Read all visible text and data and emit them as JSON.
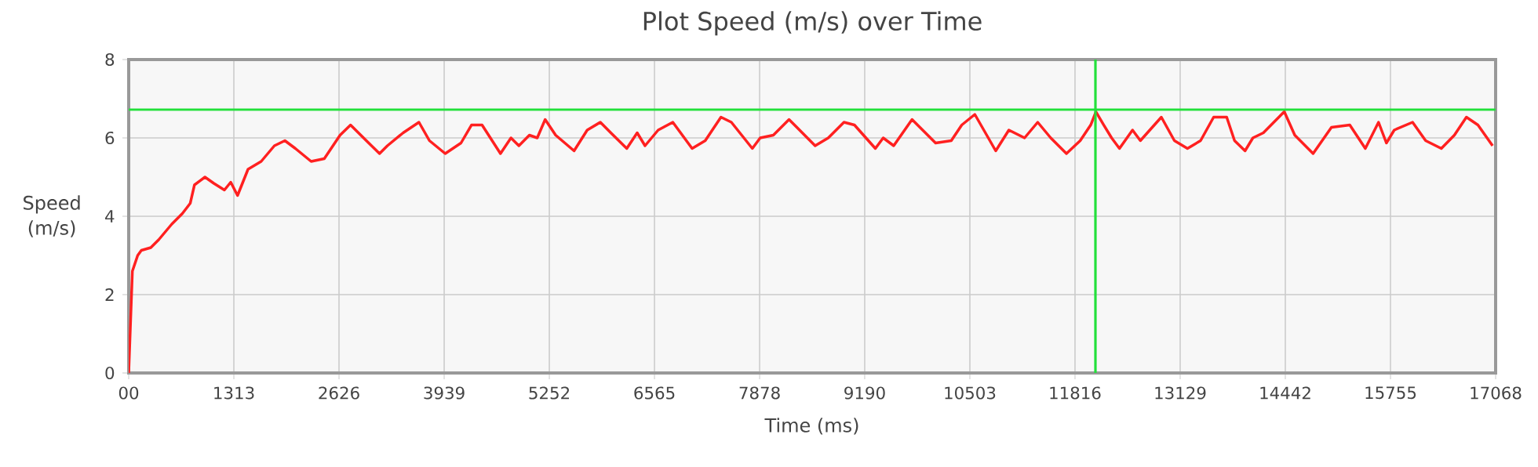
{
  "chart_data": {
    "type": "line",
    "title": "Plot Speed (m/s) over Time",
    "xlabel": "Time (ms)",
    "ylabel": "Speed (m/s)",
    "xlim": [
      0,
      17068
    ],
    "ylim": [
      0,
      8
    ],
    "xticks": [
      {
        "value": 0,
        "label": "00"
      },
      1313,
      2626,
      3939,
      5252,
      6565,
      7878,
      9190,
      10503,
      11816,
      13129,
      14442,
      15755,
      17068
    ],
    "yticks": [
      0,
      2,
      4,
      6,
      8
    ],
    "grid": true,
    "legend": false,
    "marker": "none",
    "line_style": "solid",
    "series": [
      {
        "color": "#ff2020",
        "x": [
          0,
          46,
          112,
          158,
          276,
          374,
          538,
          670,
          768,
          821,
          952,
          1063,
          1195,
          1274,
          1359,
          1490,
          1654,
          1819,
          1950,
          2081,
          2278,
          2442,
          2639,
          2770,
          2967,
          3132,
          3230,
          3427,
          3624,
          3755,
          3952,
          4149,
          4280,
          4412,
          4642,
          4773,
          4872,
          5003,
          5101,
          5200,
          5331,
          5561,
          5725,
          5889,
          6020,
          6219,
          6349,
          6447,
          6611,
          6794,
          7035,
          7199,
          7395,
          7525,
          7787,
          7885,
          8049,
          8245,
          8571,
          8735,
          8931,
          9062,
          9323,
          9421,
          9552,
          9781,
          10075,
          10271,
          10402,
          10565,
          10826,
          10990,
          11186,
          11350,
          11513,
          11709,
          11881,
          12012,
          12077,
          12175,
          12273,
          12371,
          12534,
          12632,
          12894,
          13057,
          13220,
          13384,
          13547,
          13710,
          13808,
          13939,
          14037,
          14168,
          14429,
          14560,
          14789,
          15018,
          15247,
          15441,
          15606,
          15704,
          15802,
          16031,
          16194,
          16390,
          16553,
          16703,
          16847,
          17030
        ],
        "values": [
          0,
          2.6,
          3.0,
          3.13,
          3.2,
          3.4,
          3.8,
          4.07,
          4.33,
          4.8,
          5.0,
          4.84,
          4.67,
          4.87,
          4.53,
          5.2,
          5.4,
          5.8,
          5.93,
          5.73,
          5.4,
          5.47,
          6.07,
          6.33,
          5.93,
          5.6,
          5.8,
          6.13,
          6.4,
          5.93,
          5.6,
          5.87,
          6.33,
          6.33,
          5.6,
          6.0,
          5.8,
          6.07,
          6.0,
          6.47,
          6.07,
          5.67,
          6.2,
          6.4,
          6.13,
          5.73,
          6.13,
          5.8,
          6.2,
          6.4,
          5.73,
          5.93,
          6.53,
          6.4,
          5.73,
          6.0,
          6.07,
          6.47,
          5.8,
          6.0,
          6.4,
          6.33,
          5.73,
          6.0,
          5.8,
          6.47,
          5.87,
          5.93,
          6.33,
          6.6,
          5.67,
          6.2,
          6.0,
          6.4,
          6.0,
          5.6,
          5.93,
          6.33,
          6.67,
          6.33,
          6.0,
          5.73,
          6.2,
          5.93,
          6.53,
          5.93,
          5.73,
          5.93,
          6.53,
          6.53,
          5.93,
          5.67,
          6.0,
          6.13,
          6.67,
          6.07,
          5.6,
          6.27,
          6.33,
          5.73,
          6.4,
          5.87,
          6.2,
          6.4,
          5.93,
          5.73,
          6.07,
          6.53,
          6.33,
          5.8
        ]
      }
    ],
    "ref_lines": [
      {
        "axis": "y",
        "value": 6.72,
        "color": "#22e03a"
      },
      {
        "axis": "x",
        "value": 12071,
        "color": "#22e03a"
      }
    ]
  }
}
